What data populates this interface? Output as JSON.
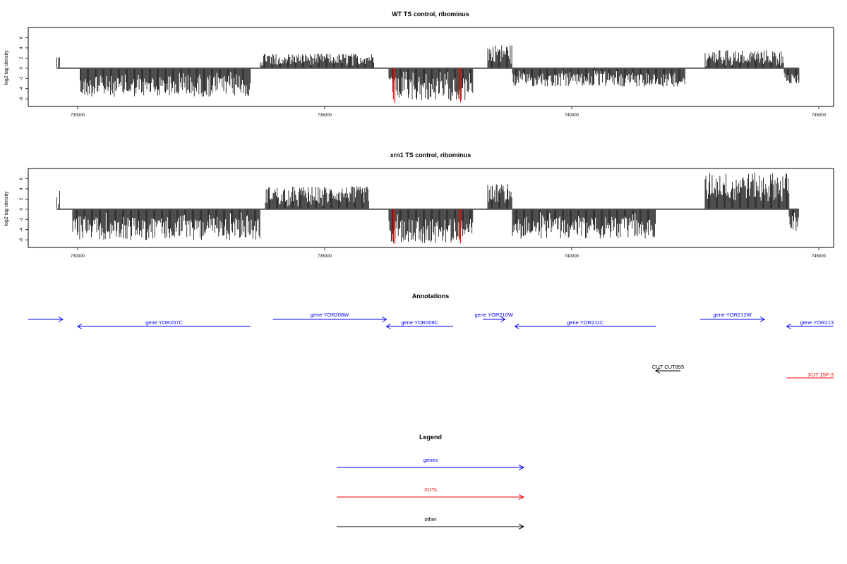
{
  "chart_data": [
    {
      "type": "bar",
      "title": "WT TS control, ribominus",
      "ylabel": "log2 tag density",
      "xlabel": "",
      "xlim": [
        729000,
        745300
      ],
      "ylim": [
        -7.5,
        8
      ],
      "x_ticks": [
        730000,
        735000,
        740000,
        745000
      ],
      "y_ticks": [
        -6,
        -4,
        -2,
        0,
        2,
        4,
        6
      ],
      "series": [
        {
          "color": "#000000",
          "values": [
            {
              "region": [
                729580,
                729650
              ],
              "strand": "plus",
              "max": 2.7
            },
            {
              "region": [
                730050,
                733500
              ],
              "strand": "minus",
              "max": -5.6
            },
            {
              "region": [
                733700,
                736000
              ],
              "strand": "plus",
              "max": 2.9
            },
            {
              "region": [
                736300,
                738000
              ],
              "strand": "minus",
              "max": -6.4
            },
            {
              "region": [
                738300,
                738800
              ],
              "strand": "plus",
              "max": 4.7
            },
            {
              "region": [
                738800,
                742300
              ],
              "strand": "minus",
              "max": -3.6
            },
            {
              "region": [
                742700,
                744300
              ],
              "strand": "plus",
              "max": 3.6
            },
            {
              "region": [
                744300,
                744600
              ],
              "strand": "minus",
              "max": -3.0
            }
          ]
        },
        {
          "color": "#ff0000",
          "values": [
            {
              "x": 736420,
              "y": -6.8
            },
            {
              "x": 737750,
              "y": -6.7
            }
          ]
        }
      ]
    },
    {
      "type": "bar",
      "title": "xrn1 TS control, ribominus",
      "ylabel": "log2 tag density",
      "xlabel": "",
      "xlim": [
        729000,
        745300
      ],
      "ylim": [
        -7.5,
        8
      ],
      "x_ticks": [
        730000,
        735000,
        740000,
        745000
      ],
      "y_ticks": [
        -6,
        -4,
        -2,
        0,
        2,
        4,
        6
      ],
      "series": [
        {
          "color": "#000000",
          "values": [
            {
              "region": [
                729580,
                729650
              ],
              "strand": "plus",
              "max": 4.5
            },
            {
              "region": [
                729900,
                733700
              ],
              "strand": "minus",
              "max": -6.1
            },
            {
              "region": [
                733800,
                735900
              ],
              "strand": "plus",
              "max": 4.5
            },
            {
              "region": [
                736300,
                738000
              ],
              "strand": "minus",
              "max": -6.7
            },
            {
              "region": [
                738300,
                738800
              ],
              "strand": "plus",
              "max": 5.0
            },
            {
              "region": [
                738800,
                741700
              ],
              "strand": "minus",
              "max": -5.8
            },
            {
              "region": [
                742700,
                744400
              ],
              "strand": "plus",
              "max": 7.2
            },
            {
              "region": [
                744400,
                744600
              ],
              "strand": "minus",
              "max": -4.5
            }
          ]
        },
        {
          "color": "#ff0000",
          "values": [
            {
              "x": 736420,
              "y": -6.8
            },
            {
              "x": 737750,
              "y": -6.7
            }
          ]
        }
      ]
    }
  ],
  "annotations": {
    "title": "Annotations",
    "items": [
      {
        "label": "",
        "start": 729000,
        "end": 729700,
        "strand": "+",
        "color": "#0000ff",
        "row": 0
      },
      {
        "label": "gene YOR207C",
        "start": 730000,
        "end": 733500,
        "strand": "-",
        "color": "#0000ff",
        "row": 1
      },
      {
        "label": "gene YOR208W",
        "start": 733950,
        "end": 736250,
        "strand": "+",
        "color": "#0000ff",
        "row": 0
      },
      {
        "label": "gene YOR209C",
        "start": 736250,
        "end": 737600,
        "strand": "-",
        "color": "#0000ff",
        "row": 1
      },
      {
        "label": "gene YOR210W",
        "start": 738200,
        "end": 738650,
        "strand": "+",
        "color": "#0000ff",
        "row": 0
      },
      {
        "label": "gene YOR211C",
        "start": 738850,
        "end": 741700,
        "strand": "-",
        "color": "#0000ff",
        "row": 1
      },
      {
        "label": "gene YOR212W",
        "start": 742600,
        "end": 743900,
        "strand": "+",
        "color": "#0000ff",
        "row": 0
      },
      {
        "label": "gene YOR213",
        "start": 744350,
        "end": 745300,
        "strand": "-",
        "color": "#0000ff",
        "row": 1
      },
      {
        "label": "CUT CUT855",
        "start": 741700,
        "end": 742200,
        "strand": "-",
        "color": "#000000",
        "row": 2
      },
      {
        "label": "XUT 15F-3",
        "start": 744350,
        "end": 745300,
        "strand": "none",
        "color": "#ff0000",
        "row": 3
      }
    ]
  },
  "legend": {
    "title": "Legend",
    "items": [
      {
        "label": "genes",
        "color": "#0000ff"
      },
      {
        "label": "XUTs",
        "color": "#ff0000"
      },
      {
        "label": "other",
        "color": "#000000"
      }
    ]
  }
}
